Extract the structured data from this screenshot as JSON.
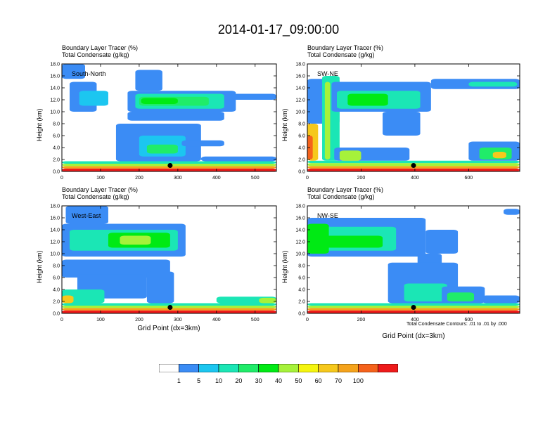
{
  "figure_title": "2014-01-17_09:00:00",
  "contour_note": "Total Condensate Contours: .01 to .01 by .000",
  "colorbar": {
    "labels": [
      "1",
      "5",
      "10",
      "20",
      "30",
      "40",
      "50",
      "60",
      "70",
      "100"
    ],
    "colors": [
      "#ffffff",
      "#3b8cf5",
      "#1cc6f0",
      "#1be6b5",
      "#20ec69",
      "#00ea14",
      "#a6f23a",
      "#f5f50f",
      "#f6c81c",
      "#f5a31b",
      "#f5621b",
      "#ee1a1a"
    ]
  },
  "chart_data": [
    {
      "type": "heatmap",
      "panel_label": "South-North",
      "subtitle_lines": [
        "Boundary Layer Tracer   (%)",
        "Total Condensate   (g/kg)"
      ],
      "ylabel": "Height (km)",
      "xlabel": "",
      "xlim": [
        0,
        555
      ],
      "ylim": [
        0,
        18
      ],
      "xticks": [
        "0",
        "100",
        "200",
        "300",
        "400",
        "500"
      ],
      "xtick_values": [
        0,
        100,
        200,
        300,
        400,
        500
      ],
      "yticks": [
        "0.0",
        "2.0",
        "4.0",
        "6.0",
        "8.0",
        "10.0",
        "12.0",
        "14.0",
        "16.0",
        "18.0"
      ],
      "marker": {
        "x": 280,
        "y": 1.0
      },
      "regions": [
        {
          "x0": 0,
          "x1": 555,
          "y0": 0,
          "y1": 0.5,
          "level": 11
        },
        {
          "x0": 0,
          "x1": 555,
          "y0": 0.5,
          "y1": 0.9,
          "level": 9
        },
        {
          "x0": 0,
          "x1": 555,
          "y0": 0.9,
          "y1": 1.3,
          "level": 6
        },
        {
          "x0": 0,
          "x1": 555,
          "y0": 1.3,
          "y1": 1.7,
          "level": 3
        },
        {
          "x0": 0,
          "x1": 60,
          "y0": 15.5,
          "y1": 18,
          "level": 1
        },
        {
          "x0": 20,
          "x1": 90,
          "y0": 10,
          "y1": 15,
          "level": 1
        },
        {
          "x0": 45,
          "x1": 120,
          "y0": 11,
          "y1": 13.5,
          "level": 2
        },
        {
          "x0": 190,
          "x1": 260,
          "y0": 13.5,
          "y1": 17,
          "level": 1
        },
        {
          "x0": 170,
          "x1": 450,
          "y0": 10,
          "y1": 13.5,
          "level": 1
        },
        {
          "x0": 190,
          "x1": 420,
          "y0": 10.5,
          "y1": 13,
          "level": 3
        },
        {
          "x0": 200,
          "x1": 380,
          "y0": 11,
          "y1": 12.5,
          "level": 4
        },
        {
          "x0": 205,
          "x1": 300,
          "y0": 11.3,
          "y1": 12.3,
          "level": 5
        },
        {
          "x0": 440,
          "x1": 555,
          "y0": 12,
          "y1": 13,
          "level": 1
        },
        {
          "x0": 170,
          "x1": 420,
          "y0": 8.5,
          "y1": 10,
          "level": 1
        },
        {
          "x0": 140,
          "x1": 360,
          "y0": 1.7,
          "y1": 8,
          "level": 1
        },
        {
          "x0": 200,
          "x1": 320,
          "y0": 2.5,
          "y1": 6,
          "level": 2
        },
        {
          "x0": 220,
          "x1": 300,
          "y0": 3,
          "y1": 4.5,
          "level": 4
        },
        {
          "x0": 310,
          "x1": 420,
          "y0": 4.2,
          "y1": 5.2,
          "level": 1
        },
        {
          "x0": 360,
          "x1": 555,
          "y0": 1.7,
          "y1": 2.5,
          "level": 1
        }
      ]
    },
    {
      "type": "heatmap",
      "panel_label": "SW-NE",
      "subtitle_lines": [
        "Boundary Layer Tracer   (%)",
        "Total Condensate   (g/kg)"
      ],
      "ylabel": "Height (km)",
      "xlabel": "",
      "xlim": [
        0,
        790
      ],
      "ylim": [
        0,
        18
      ],
      "xticks": [
        "0",
        "200",
        "400",
        "600"
      ],
      "xtick_values": [
        0,
        200,
        400,
        600
      ],
      "yticks": [
        "0.0",
        "2.0",
        "4.0",
        "6.0",
        "8.0",
        "10.0",
        "12.0",
        "14.0",
        "16.0",
        "18.0"
      ],
      "marker": {
        "x": 395,
        "y": 1.0
      },
      "regions": [
        {
          "x0": 0,
          "x1": 790,
          "y0": 0,
          "y1": 0.5,
          "level": 11
        },
        {
          "x0": 0,
          "x1": 790,
          "y0": 0.5,
          "y1": 0.9,
          "level": 9
        },
        {
          "x0": 0,
          "x1": 790,
          "y0": 0.9,
          "y1": 1.4,
          "level": 6
        },
        {
          "x0": 0,
          "x1": 790,
          "y0": 1.4,
          "y1": 1.8,
          "level": 3
        },
        {
          "x0": 0,
          "x1": 40,
          "y0": 1.8,
          "y1": 8,
          "level": 8
        },
        {
          "x0": 0,
          "x1": 20,
          "y0": 2,
          "y1": 6,
          "level": 10
        },
        {
          "x0": 0,
          "x1": 120,
          "y0": 8,
          "y1": 15.5,
          "level": 1
        },
        {
          "x0": 55,
          "x1": 120,
          "y0": 1.8,
          "y1": 16,
          "level": 3
        },
        {
          "x0": 65,
          "x1": 85,
          "y0": 2,
          "y1": 15,
          "level": 6
        },
        {
          "x0": 90,
          "x1": 460,
          "y0": 10,
          "y1": 15,
          "level": 1
        },
        {
          "x0": 110,
          "x1": 420,
          "y0": 10.5,
          "y1": 13.5,
          "level": 3
        },
        {
          "x0": 150,
          "x1": 300,
          "y0": 11,
          "y1": 13,
          "level": 5
        },
        {
          "x0": 460,
          "x1": 790,
          "y0": 13.8,
          "y1": 15.5,
          "level": 1
        },
        {
          "x0": 600,
          "x1": 780,
          "y0": 14.2,
          "y1": 15,
          "level": 3
        },
        {
          "x0": 280,
          "x1": 420,
          "y0": 6,
          "y1": 10,
          "level": 1
        },
        {
          "x0": 100,
          "x1": 380,
          "y0": 1.8,
          "y1": 4,
          "level": 1
        },
        {
          "x0": 120,
          "x1": 200,
          "y0": 1.8,
          "y1": 3.5,
          "level": 6
        },
        {
          "x0": 600,
          "x1": 790,
          "y0": 1.8,
          "y1": 5,
          "level": 1
        },
        {
          "x0": 640,
          "x1": 760,
          "y0": 2,
          "y1": 4,
          "level": 4
        },
        {
          "x0": 690,
          "x1": 740,
          "y0": 2.2,
          "y1": 3.3,
          "level": 8
        }
      ]
    },
    {
      "type": "heatmap",
      "panel_label": "West-East",
      "subtitle_lines": [
        "Boundary Layer Tracer   (%)",
        "Total Condensate   (g/kg)"
      ],
      "ylabel": "Height (km)",
      "xlabel": "Grid Point (dx=3km)",
      "xlim": [
        0,
        555
      ],
      "ylim": [
        0,
        18
      ],
      "xticks": [
        "0",
        "100",
        "200",
        "300",
        "400",
        "500"
      ],
      "xtick_values": [
        0,
        100,
        200,
        300,
        400,
        500
      ],
      "yticks": [
        "0.0",
        "2.0",
        "4.0",
        "6.0",
        "8.0",
        "10.0",
        "12.0",
        "14.0",
        "16.0",
        "18.0"
      ],
      "marker": {
        "x": 280,
        "y": 1.0
      },
      "regions": [
        {
          "x0": 0,
          "x1": 555,
          "y0": 0,
          "y1": 0.5,
          "level": 11
        },
        {
          "x0": 0,
          "x1": 555,
          "y0": 0.5,
          "y1": 0.9,
          "level": 9
        },
        {
          "x0": 0,
          "x1": 555,
          "y0": 0.9,
          "y1": 1.3,
          "level": 6
        },
        {
          "x0": 0,
          "x1": 555,
          "y0": 1.3,
          "y1": 1.7,
          "level": 3
        },
        {
          "x0": 10,
          "x1": 120,
          "y0": 15,
          "y1": 18,
          "level": 1
        },
        {
          "x0": 0,
          "x1": 320,
          "y0": 9.5,
          "y1": 15,
          "level": 1
        },
        {
          "x0": 20,
          "x1": 300,
          "y0": 10.5,
          "y1": 14,
          "level": 3
        },
        {
          "x0": 120,
          "x1": 280,
          "y0": 11,
          "y1": 13.5,
          "level": 5
        },
        {
          "x0": 150,
          "x1": 230,
          "y0": 11.5,
          "y1": 13,
          "level": 6
        },
        {
          "x0": 0,
          "x1": 280,
          "y0": 6,
          "y1": 9,
          "level": 1
        },
        {
          "x0": 40,
          "x1": 220,
          "y0": 2.5,
          "y1": 6.5,
          "level": 1
        },
        {
          "x0": 0,
          "x1": 110,
          "y0": 1.7,
          "y1": 4,
          "level": 3
        },
        {
          "x0": 0,
          "x1": 30,
          "y0": 1.7,
          "y1": 3,
          "level": 8
        },
        {
          "x0": 220,
          "x1": 290,
          "y0": 1.7,
          "y1": 7,
          "level": 1
        },
        {
          "x0": 400,
          "x1": 555,
          "y0": 1.7,
          "y1": 2.8,
          "level": 3
        },
        {
          "x0": 510,
          "x1": 555,
          "y0": 1.7,
          "y1": 2.6,
          "level": 6
        }
      ]
    },
    {
      "type": "heatmap",
      "panel_label": "NW-SE",
      "subtitle_lines": [
        "Boundary Layer Tracer   (%)",
        "Total Condensate   (g/kg)"
      ],
      "ylabel": "Height (km)",
      "xlabel": "Grid Point (dx=3km)",
      "xlim": [
        0,
        790
      ],
      "ylim": [
        0,
        18
      ],
      "xticks": [
        "0",
        "200",
        "400",
        "600"
      ],
      "xtick_values": [
        0,
        200,
        400,
        600
      ],
      "yticks": [
        "0.0",
        "2.0",
        "4.0",
        "6.0",
        "8.0",
        "10.0",
        "12.0",
        "14.0",
        "16.0",
        "18.0"
      ],
      "marker": {
        "x": 395,
        "y": 1.0
      },
      "regions": [
        {
          "x0": 0,
          "x1": 790,
          "y0": 0,
          "y1": 0.5,
          "level": 11
        },
        {
          "x0": 0,
          "x1": 790,
          "y0": 0.5,
          "y1": 0.9,
          "level": 9
        },
        {
          "x0": 0,
          "x1": 790,
          "y0": 0.9,
          "y1": 1.3,
          "level": 6
        },
        {
          "x0": 0,
          "x1": 790,
          "y0": 1.3,
          "y1": 1.7,
          "level": 3
        },
        {
          "x0": 0,
          "x1": 440,
          "y0": 9.5,
          "y1": 16,
          "level": 1
        },
        {
          "x0": 0,
          "x1": 330,
          "y0": 10.5,
          "y1": 14.5,
          "level": 3
        },
        {
          "x0": 0,
          "x1": 80,
          "y0": 10,
          "y1": 15,
          "level": 5
        },
        {
          "x0": 60,
          "x1": 280,
          "y0": 11,
          "y1": 13,
          "level": 5
        },
        {
          "x0": 440,
          "x1": 560,
          "y0": 10,
          "y1": 14,
          "level": 1
        },
        {
          "x0": 730,
          "x1": 790,
          "y0": 16.5,
          "y1": 17.5,
          "level": 1
        },
        {
          "x0": 410,
          "x1": 500,
          "y0": 7.5,
          "y1": 10,
          "level": 1
        },
        {
          "x0": 300,
          "x1": 560,
          "y0": 1.7,
          "y1": 8.5,
          "level": 1
        },
        {
          "x0": 360,
          "x1": 520,
          "y0": 2,
          "y1": 5,
          "level": 3
        },
        {
          "x0": 500,
          "x1": 660,
          "y0": 1.7,
          "y1": 4.5,
          "level": 1
        },
        {
          "x0": 520,
          "x1": 620,
          "y0": 2,
          "y1": 3.5,
          "level": 4
        },
        {
          "x0": 650,
          "x1": 790,
          "y0": 1.7,
          "y1": 3,
          "level": 1
        }
      ]
    }
  ]
}
